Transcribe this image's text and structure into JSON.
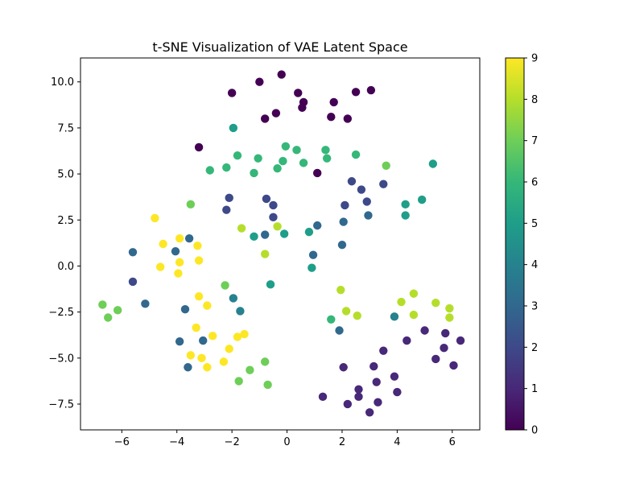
{
  "chart_data": {
    "type": "scatter",
    "title": "t-SNE Visualization of VAE Latent Space",
    "xlabel": "",
    "ylabel": "",
    "xlim": [
      -7.5,
      7.0
    ],
    "ylim": [
      -8.9,
      11.3
    ],
    "x_ticks": [
      -6,
      -4,
      -2,
      0,
      2,
      4,
      6
    ],
    "y_ticks": [
      -7.5,
      -5.0,
      -2.5,
      0.0,
      2.5,
      5.0,
      7.5,
      10.0
    ],
    "x_tick_labels": [
      "−6",
      "−4",
      "−2",
      "0",
      "2",
      "4",
      "6"
    ],
    "y_tick_labels": [
      "−7.5",
      "−5.0",
      "−2.5",
      "0.0",
      "2.5",
      "5.0",
      "7.5",
      "10.0"
    ],
    "grid": false,
    "colormap": "viridis",
    "colorbar": {
      "min": 0,
      "max": 9,
      "ticks": [
        0,
        1,
        2,
        3,
        4,
        5,
        6,
        7,
        8,
        9
      ],
      "tick_labels": [
        "0",
        "1",
        "2",
        "3",
        "4",
        "5",
        "6",
        "7",
        "8",
        "9"
      ]
    },
    "points": [
      {
        "x": -2.0,
        "y": 9.4,
        "label": 0
      },
      {
        "x": -1.0,
        "y": 10.0,
        "label": 0
      },
      {
        "x": -0.2,
        "y": 10.4,
        "label": 0
      },
      {
        "x": 0.4,
        "y": 9.4,
        "label": 0
      },
      {
        "x": 0.6,
        "y": 8.9,
        "label": 0
      },
      {
        "x": 0.55,
        "y": 8.6,
        "label": 0
      },
      {
        "x": -0.4,
        "y": 8.3,
        "label": 0
      },
      {
        "x": -0.8,
        "y": 8.0,
        "label": 0
      },
      {
        "x": 1.7,
        "y": 8.9,
        "label": 0
      },
      {
        "x": 2.5,
        "y": 9.45,
        "label": 0
      },
      {
        "x": 3.05,
        "y": 9.55,
        "label": 0
      },
      {
        "x": 1.6,
        "y": 8.1,
        "label": 0
      },
      {
        "x": 2.2,
        "y": 8.0,
        "label": 0
      },
      {
        "x": -3.2,
        "y": 6.45,
        "label": 0
      },
      {
        "x": 1.1,
        "y": 5.05,
        "label": 0
      },
      {
        "x": 2.6,
        "y": -6.7,
        "label": 1
      },
      {
        "x": 2.2,
        "y": -7.5,
        "label": 1
      },
      {
        "x": 2.6,
        "y": -7.1,
        "label": 1
      },
      {
        "x": 3.3,
        "y": -7.4,
        "label": 1
      },
      {
        "x": 3.0,
        "y": -7.95,
        "label": 1
      },
      {
        "x": 1.3,
        "y": -7.1,
        "label": 1
      },
      {
        "x": 2.05,
        "y": -5.5,
        "label": 1
      },
      {
        "x": 3.15,
        "y": -5.45,
        "label": 1
      },
      {
        "x": 3.25,
        "y": -6.3,
        "label": 1
      },
      {
        "x": 3.5,
        "y": -4.6,
        "label": 1
      },
      {
        "x": 3.9,
        "y": -6.0,
        "label": 1
      },
      {
        "x": 4.0,
        "y": -6.85,
        "label": 1
      },
      {
        "x": 4.35,
        "y": -4.05,
        "label": 1
      },
      {
        "x": 5.0,
        "y": -3.5,
        "label": 1
      },
      {
        "x": 5.4,
        "y": -5.05,
        "label": 1
      },
      {
        "x": 5.7,
        "y": -4.45,
        "label": 1
      },
      {
        "x": 5.75,
        "y": -3.65,
        "label": 1
      },
      {
        "x": 6.05,
        "y": -5.4,
        "label": 1
      },
      {
        "x": 6.3,
        "y": -4.05,
        "label": 1
      },
      {
        "x": -2.1,
        "y": 3.7,
        "label": 2
      },
      {
        "x": -2.2,
        "y": 3.05,
        "label": 2
      },
      {
        "x": -0.75,
        "y": 3.65,
        "label": 2
      },
      {
        "x": -0.5,
        "y": 3.3,
        "label": 2
      },
      {
        "x": -0.5,
        "y": 2.65,
        "label": 2
      },
      {
        "x": 2.35,
        "y": 4.6,
        "label": 2
      },
      {
        "x": 2.7,
        "y": 4.15,
        "label": 2
      },
      {
        "x": 2.9,
        "y": 3.5,
        "label": 2
      },
      {
        "x": 3.5,
        "y": 4.45,
        "label": 2
      },
      {
        "x": 2.1,
        "y": 3.3,
        "label": 2
      },
      {
        "x": -5.6,
        "y": -0.85,
        "label": 2
      },
      {
        "x": -0.8,
        "y": 1.7,
        "label": 3
      },
      {
        "x": 1.1,
        "y": 2.2,
        "label": 3
      },
      {
        "x": 2.05,
        "y": 2.4,
        "label": 3
      },
      {
        "x": 2.95,
        "y": 2.75,
        "label": 3
      },
      {
        "x": 2.0,
        "y": 1.15,
        "label": 3
      },
      {
        "x": 0.95,
        "y": 0.6,
        "label": 3
      },
      {
        "x": -3.55,
        "y": 1.5,
        "label": 3
      },
      {
        "x": -4.05,
        "y": 0.8,
        "label": 3
      },
      {
        "x": -5.6,
        "y": 0.75,
        "label": 3
      },
      {
        "x": -5.15,
        "y": -2.05,
        "label": 3
      },
      {
        "x": -3.7,
        "y": -2.35,
        "label": 3
      },
      {
        "x": -3.9,
        "y": -4.1,
        "label": 3
      },
      {
        "x": -3.6,
        "y": -5.5,
        "label": 3
      },
      {
        "x": -3.05,
        "y": -4.05,
        "label": 3
      },
      {
        "x": 1.9,
        "y": -3.5,
        "label": 3
      },
      {
        "x": -1.95,
        "y": -1.75,
        "label": 4
      },
      {
        "x": -1.7,
        "y": -2.45,
        "label": 4
      },
      {
        "x": 3.9,
        "y": -2.75,
        "label": 4
      },
      {
        "x": -1.95,
        "y": 7.5,
        "label": 5
      },
      {
        "x": -1.2,
        "y": 1.6,
        "label": 5
      },
      {
        "x": -0.1,
        "y": 1.75,
        "label": 5
      },
      {
        "x": 0.8,
        "y": 1.85,
        "label": 5
      },
      {
        "x": 0.9,
        "y": -0.1,
        "label": 5
      },
      {
        "x": -0.6,
        "y": -1.0,
        "label": 5
      },
      {
        "x": 4.3,
        "y": 3.35,
        "label": 5
      },
      {
        "x": 4.3,
        "y": 2.75,
        "label": 5
      },
      {
        "x": 4.9,
        "y": 3.6,
        "label": 5
      },
      {
        "x": 5.3,
        "y": 5.55,
        "label": 5
      },
      {
        "x": -1.8,
        "y": 6.0,
        "label": 6
      },
      {
        "x": -2.2,
        "y": 5.35,
        "label": 6
      },
      {
        "x": -1.05,
        "y": 5.85,
        "label": 6
      },
      {
        "x": -1.2,
        "y": 5.05,
        "label": 6
      },
      {
        "x": -0.05,
        "y": 6.5,
        "label": 6
      },
      {
        "x": 0.35,
        "y": 6.3,
        "label": 6
      },
      {
        "x": -0.15,
        "y": 5.7,
        "label": 6
      },
      {
        "x": -0.35,
        "y": 5.3,
        "label": 6
      },
      {
        "x": 0.6,
        "y": 5.6,
        "label": 6
      },
      {
        "x": 1.4,
        "y": 6.3,
        "label": 6
      },
      {
        "x": 1.45,
        "y": 5.85,
        "label": 6
      },
      {
        "x": 2.5,
        "y": 6.05,
        "label": 6
      },
      {
        "x": -2.8,
        "y": 5.2,
        "label": 6
      },
      {
        "x": 1.6,
        "y": -2.9,
        "label": 6
      },
      {
        "x": -3.5,
        "y": 3.35,
        "label": 7
      },
      {
        "x": 3.6,
        "y": 5.45,
        "label": 7
      },
      {
        "x": -2.25,
        "y": -1.05,
        "label": 7
      },
      {
        "x": -6.7,
        "y": -2.1,
        "label": 7
      },
      {
        "x": -6.5,
        "y": -2.8,
        "label": 7
      },
      {
        "x": -6.15,
        "y": -2.4,
        "label": 7
      },
      {
        "x": -0.8,
        "y": -5.2,
        "label": 7
      },
      {
        "x": -1.35,
        "y": -5.65,
        "label": 7
      },
      {
        "x": -1.75,
        "y": -6.25,
        "label": 7
      },
      {
        "x": -0.7,
        "y": -6.45,
        "label": 7
      },
      {
        "x": -1.65,
        "y": 2.05,
        "label": 8
      },
      {
        "x": -0.35,
        "y": 2.15,
        "label": 8
      },
      {
        "x": -0.8,
        "y": 0.65,
        "label": 8
      },
      {
        "x": 1.95,
        "y": -1.3,
        "label": 8
      },
      {
        "x": 2.15,
        "y": -2.45,
        "label": 8
      },
      {
        "x": 2.55,
        "y": -2.7,
        "label": 8
      },
      {
        "x": 4.15,
        "y": -1.95,
        "label": 8
      },
      {
        "x": 4.6,
        "y": -1.5,
        "label": 8
      },
      {
        "x": 4.6,
        "y": -2.65,
        "label": 8
      },
      {
        "x": 5.4,
        "y": -2.0,
        "label": 8
      },
      {
        "x": 5.9,
        "y": -2.3,
        "label": 8
      },
      {
        "x": 5.9,
        "y": -2.8,
        "label": 8
      },
      {
        "x": -4.8,
        "y": 2.6,
        "label": 9
      },
      {
        "x": -4.5,
        "y": 1.2,
        "label": 9
      },
      {
        "x": -3.9,
        "y": 1.5,
        "label": 9
      },
      {
        "x": -3.25,
        "y": 1.1,
        "label": 9
      },
      {
        "x": -3.9,
        "y": 0.2,
        "label": 9
      },
      {
        "x": -3.2,
        "y": 0.3,
        "label": 9
      },
      {
        "x": -4.6,
        "y": -0.05,
        "label": 9
      },
      {
        "x": -3.95,
        "y": -0.4,
        "label": 9
      },
      {
        "x": -3.2,
        "y": -1.65,
        "label": 9
      },
      {
        "x": -2.9,
        "y": -2.15,
        "label": 9
      },
      {
        "x": -3.3,
        "y": -3.35,
        "label": 9
      },
      {
        "x": -2.7,
        "y": -3.8,
        "label": 9
      },
      {
        "x": -2.1,
        "y": -4.5,
        "label": 9
      },
      {
        "x": -3.5,
        "y": -4.85,
        "label": 9
      },
      {
        "x": -3.1,
        "y": -5.0,
        "label": 9
      },
      {
        "x": -2.9,
        "y": -5.5,
        "label": 9
      },
      {
        "x": -2.3,
        "y": -5.2,
        "label": 9
      },
      {
        "x": -1.8,
        "y": -3.85,
        "label": 9
      },
      {
        "x": -1.55,
        "y": -3.7,
        "label": 9
      }
    ]
  }
}
